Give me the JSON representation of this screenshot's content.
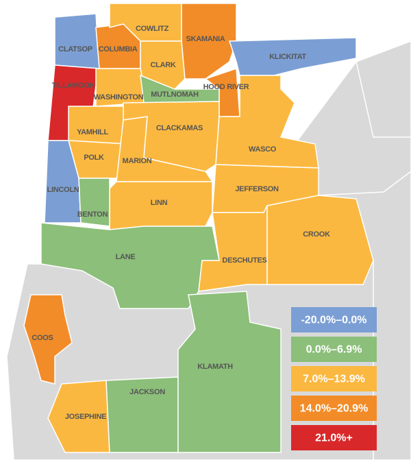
{
  "map": {
    "counties": [
      {
        "name": "CLATSOP",
        "color": "#7b9fd4"
      },
      {
        "name": "COLUMBIA",
        "color": "#f28c28"
      },
      {
        "name": "COWLITZ",
        "color": "#fbb840"
      },
      {
        "name": "CLARK",
        "color": "#fbb840"
      },
      {
        "name": "SKAMANIA",
        "color": "#f28c28"
      },
      {
        "name": "KLICKITAT",
        "color": "#7b9fd4"
      },
      {
        "name": "TILLAMOOK",
        "color": "#d9282a"
      },
      {
        "name": "WASHINGTON",
        "color": "#fbb840"
      },
      {
        "name": "MUTLNOMAH",
        "color": "#8cbf7a"
      },
      {
        "name": "HOOD RIVER",
        "color": "#f28c28"
      },
      {
        "name": "YAMHILL",
        "color": "#fbb840"
      },
      {
        "name": "POLK",
        "color": "#fbb840"
      },
      {
        "name": "MARION",
        "color": "#fbb840"
      },
      {
        "name": "CLACKAMAS",
        "color": "#fbb840"
      },
      {
        "name": "WASCO",
        "color": "#fbb840"
      },
      {
        "name": "JEFFERSON",
        "color": "#fbb840"
      },
      {
        "name": "LINN",
        "color": "#fbb840"
      },
      {
        "name": "LINCOLN",
        "color": "#7b9fd4"
      },
      {
        "name": "BENTON",
        "color": "#8cbf7a"
      },
      {
        "name": "LANE",
        "color": "#8cbf7a"
      },
      {
        "name": "DESCHUTES",
        "color": "#fbb840"
      },
      {
        "name": "CROOK",
        "color": "#fbb840"
      },
      {
        "name": "COOS",
        "color": "#f28c28"
      },
      {
        "name": "JOSEPHINE",
        "color": "#fbb840"
      },
      {
        "name": "JACKSON",
        "color": "#8cbf7a"
      },
      {
        "name": "KLAMATH",
        "color": "#8cbf7a"
      }
    ],
    "legend": [
      {
        "label": "-20.0%–0.0%",
        "color": "#7b9fd4"
      },
      {
        "label": "0.0%–6.9%",
        "color": "#8cbf7a"
      },
      {
        "label": "7.0%–13.9%",
        "color": "#fbb840"
      },
      {
        "label": "14.0%–20.9%",
        "color": "#f28c28"
      },
      {
        "label": "21.0%+",
        "color": "#d9282a"
      }
    ]
  }
}
